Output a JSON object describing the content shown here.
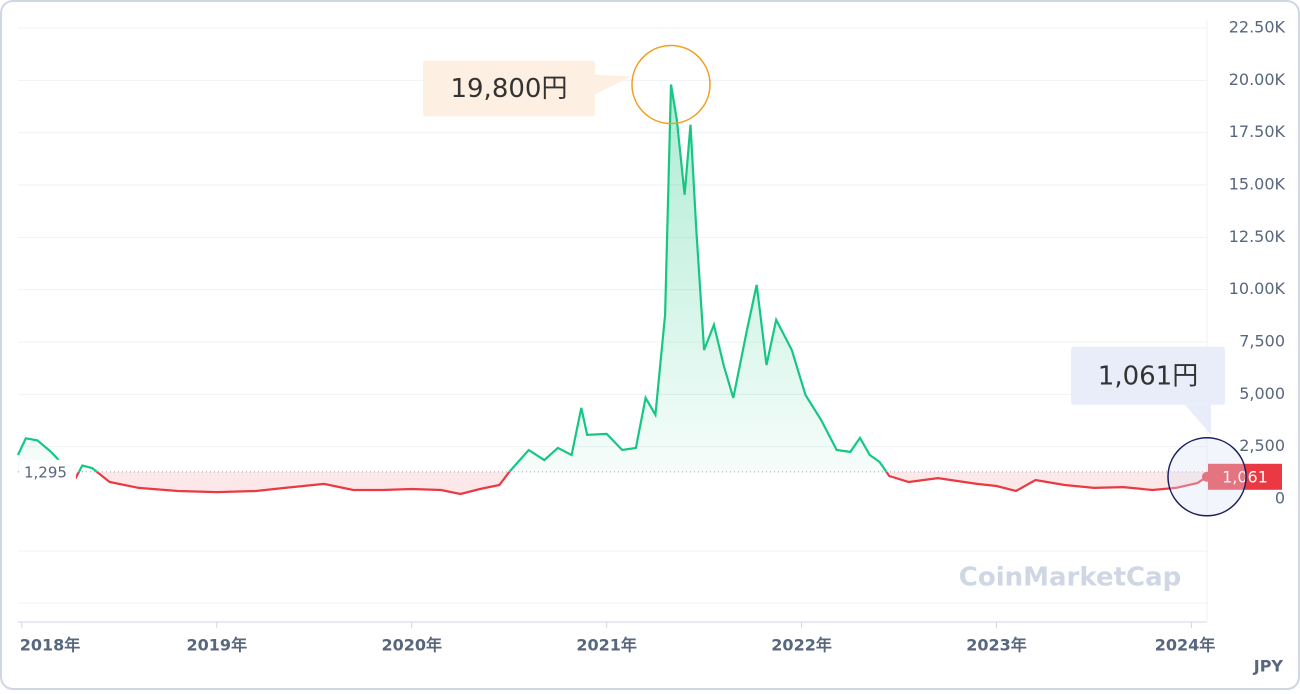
{
  "chart_data": {
    "type": "line",
    "x": [
      2017.98,
      2018.02,
      2018.08,
      2018.15,
      2018.18,
      2018.27,
      2018.31,
      2018.36,
      2018.45,
      2018.6,
      2018.8,
      2019.0,
      2019.2,
      2019.35,
      2019.55,
      2019.7,
      2019.85,
      2020.0,
      2020.15,
      2020.25,
      2020.35,
      2020.45,
      2020.5,
      2020.6,
      2020.68,
      2020.75,
      2020.82,
      2020.87,
      2020.9,
      2021.0,
      2021.08,
      2021.15,
      2021.2,
      2021.25,
      2021.3,
      2021.33,
      2021.36,
      2021.4,
      2021.43,
      2021.46,
      2021.5,
      2021.55,
      2021.6,
      2021.65,
      2021.72,
      2021.77,
      2021.82,
      2021.87,
      2021.95,
      2022.02,
      2022.1,
      2022.18,
      2022.25,
      2022.3,
      2022.35,
      2022.4,
      2022.45,
      2022.55,
      2022.7,
      2022.9,
      2023.0,
      2023.1,
      2023.2,
      2023.35,
      2023.5,
      2023.65,
      2023.8,
      2023.92,
      2024.03,
      2024.08
    ],
    "values": [
      2100,
      2900,
      2800,
      2250,
      1950,
      900,
      1600,
      1480,
      810,
      530,
      380,
      330,
      380,
      530,
      720,
      430,
      430,
      480,
      430,
      240,
      480,
      670,
      1290,
      2340,
      1860,
      2440,
      2100,
      4350,
      3060,
      3110,
      2340,
      2440,
      4830,
      4020,
      8800,
      19800,
      18120,
      14530,
      17880,
      12860,
      7120,
      8320,
      6400,
      4830,
      8080,
      10230,
      6400,
      8560,
      7120,
      4970,
      3780,
      2340,
      2250,
      2920,
      2100,
      1770,
      1100,
      810,
      1000,
      720,
      620,
      380,
      910,
      670,
      530,
      570,
      430,
      530,
      760,
      1061
    ],
    "colors": {
      "above": "#16c784",
      "below": "#ea3943"
    },
    "xlim": [
      2017.98,
      2024.08
    ],
    "xticks": [
      {
        "value": 2018,
        "label": "2018年"
      },
      {
        "value": 2019,
        "label": "2019年"
      },
      {
        "value": 2020,
        "label": "2020年"
      },
      {
        "value": 2021,
        "label": "2021年"
      },
      {
        "value": 2022,
        "label": "2022年"
      },
      {
        "value": 2023,
        "label": "2023年"
      },
      {
        "value": 2024,
        "label": "2024年"
      }
    ],
    "ylim": [
      0,
      22500
    ],
    "yticks": [
      0,
      {
        "value": 2500,
        "label": "2,500"
      },
      {
        "value": 5000,
        "label": "5,000"
      },
      {
        "value": 7500,
        "label": "7,500"
      },
      {
        "value": 10000,
        "label": "10.00K"
      },
      {
        "value": 12500,
        "label": "12.50K"
      },
      {
        "value": 15000,
        "label": "15.00K"
      },
      {
        "value": 17500,
        "label": "17.50K"
      },
      {
        "value": 20000,
        "label": "20.00K"
      },
      {
        "value": 22500,
        "label": "22.50K"
      }
    ],
    "grid": true,
    "baseline": {
      "value": 1295,
      "label": "1,295"
    },
    "price_tag": {
      "value": 1061,
      "label": "1,061"
    },
    "annotations": [
      {
        "text": "19,800円",
        "x": 2021.33,
        "value": 19800
      },
      {
        "text": "1,061円",
        "x": 2024.08,
        "value": 1061
      }
    ],
    "currency": "JPY",
    "watermark": "CoinMarketCap"
  }
}
